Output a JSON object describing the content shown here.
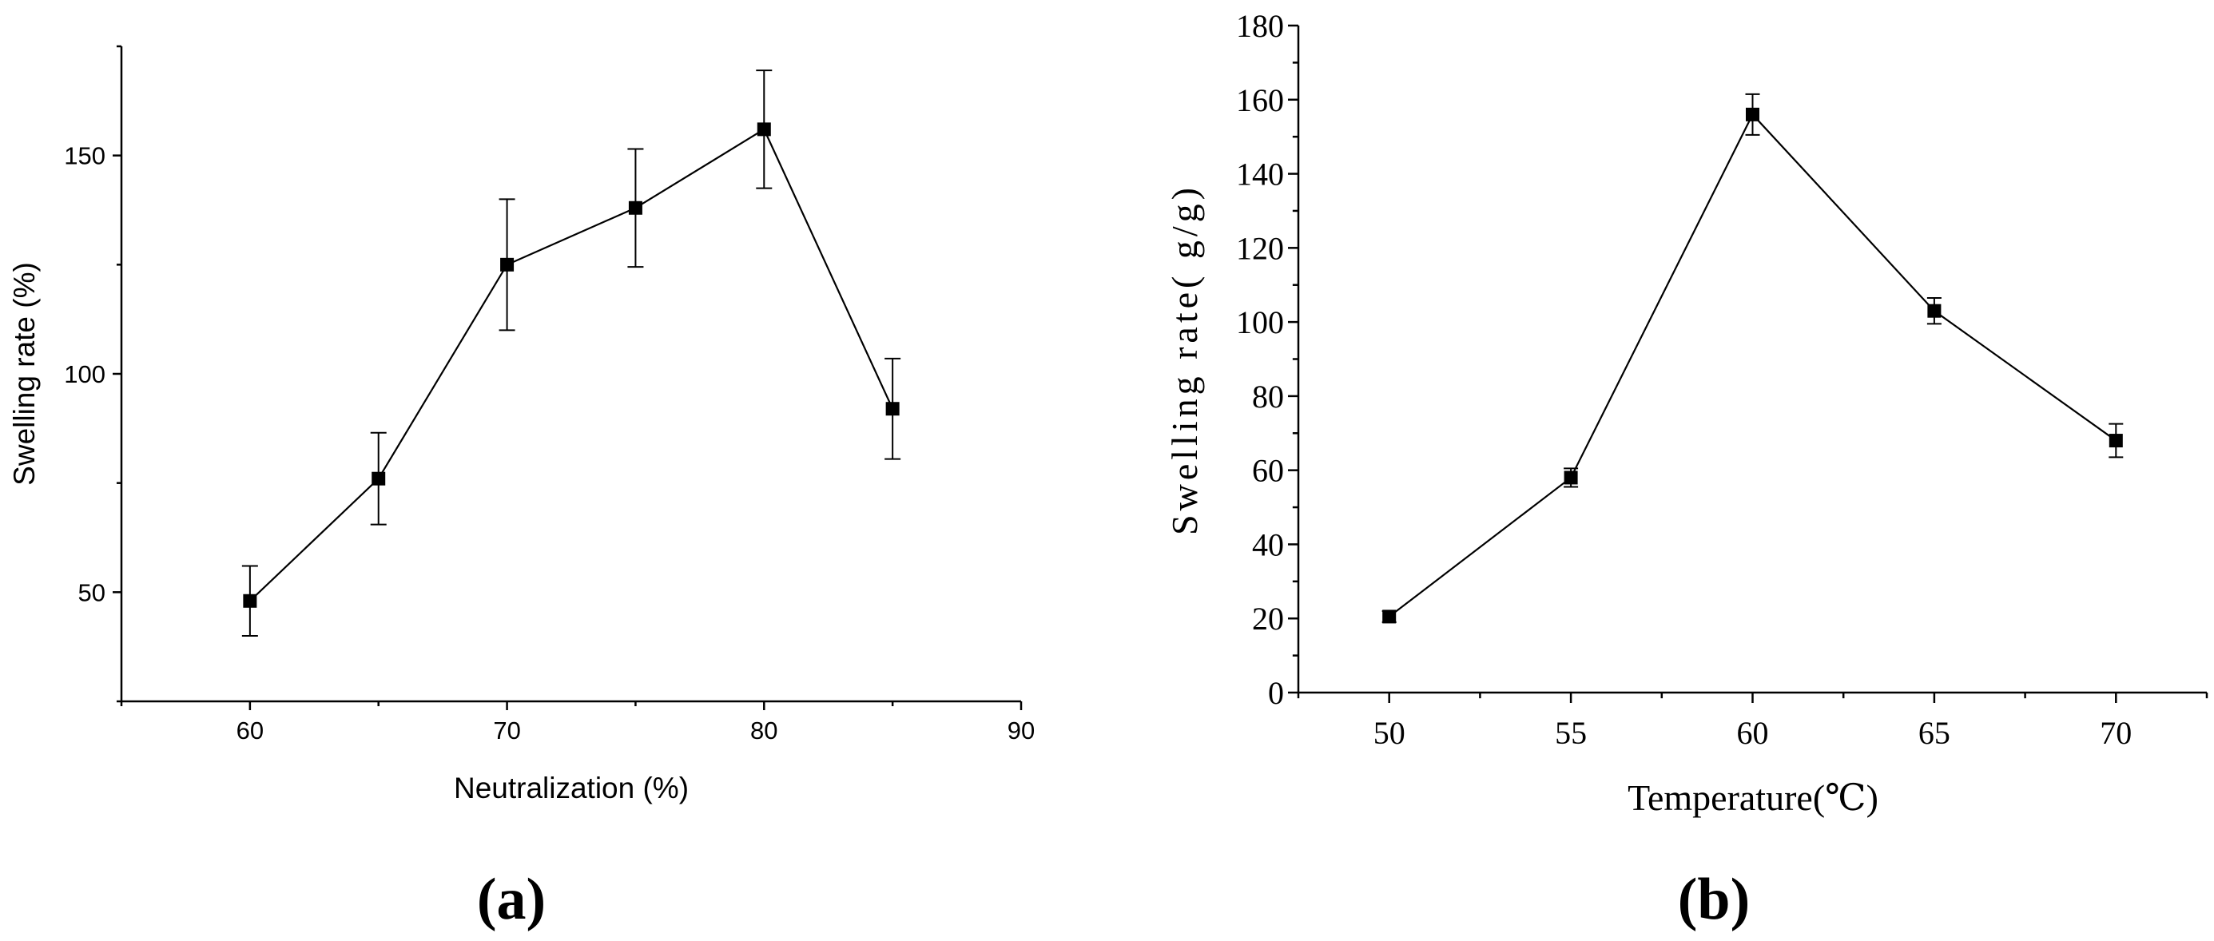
{
  "chart_data": [
    {
      "panel": "(a)",
      "type": "line",
      "xlabel": "Neutralization (%)",
      "ylabel": "Swelling rate (%)",
      "xlim": [
        55,
        90
      ],
      "ylim": [
        25,
        175
      ],
      "x_ticks": [
        60,
        70,
        80,
        90
      ],
      "y_ticks": [
        50,
        100,
        150
      ],
      "grid": false,
      "series": [
        {
          "x": [
            60,
            65,
            70,
            75,
            80,
            85
          ],
          "y": [
            48,
            76,
            125,
            138,
            156,
            92
          ],
          "error": [
            8,
            10.5,
            15,
            13.5,
            13.5,
            11.5
          ]
        }
      ]
    },
    {
      "panel": "(b)",
      "type": "line",
      "xlabel": "Temperature(℃)",
      "ylabel": "Swelling rate( g/g)",
      "xlim": [
        47.5,
        72.5
      ],
      "ylim": [
        0,
        180
      ],
      "x_ticks": [
        50,
        55,
        60,
        65,
        70
      ],
      "y_ticks": [
        0,
        20,
        40,
        60,
        80,
        100,
        120,
        140,
        160,
        180
      ],
      "grid": false,
      "series": [
        {
          "x": [
            50,
            55,
            60,
            65,
            70
          ],
          "y": [
            20.5,
            58,
            156,
            103,
            68
          ],
          "error": [
            1.5,
            2.5,
            5.5,
            3.5,
            4.5
          ]
        }
      ]
    }
  ]
}
